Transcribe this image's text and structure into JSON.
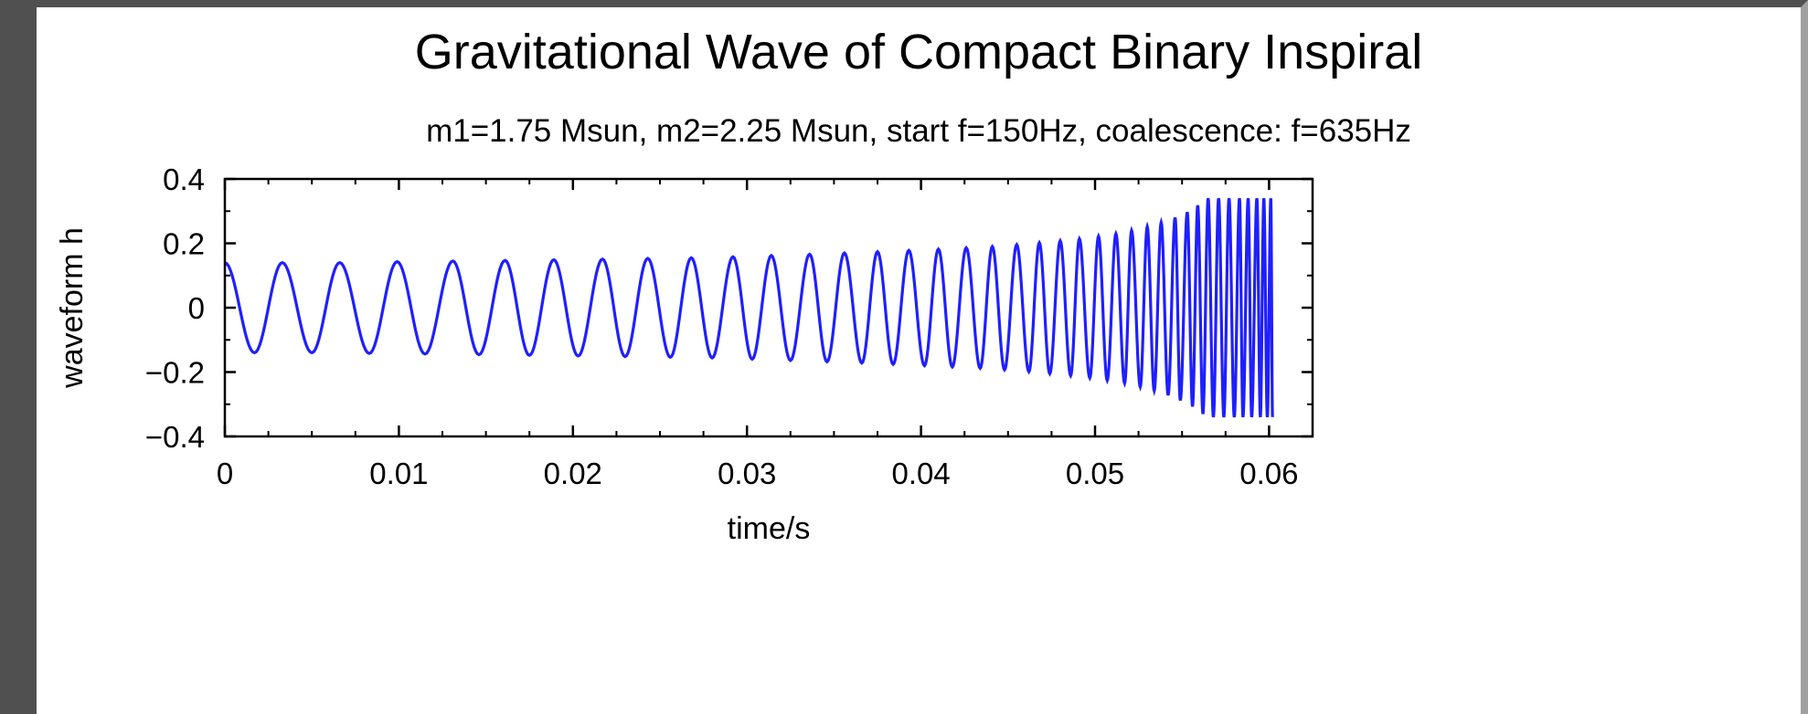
{
  "chart_data": {
    "type": "line",
    "title": "Gravitational Wave of Compact Binary Inspiral",
    "subtitle": "m1=1.75 Msun, m2=2.25 Msun, start f=150Hz, coalescence: f=635Hz",
    "xlabel": "time/s",
    "ylabel": "waveform h",
    "xlim": [
      0,
      0.0625
    ],
    "ylim": [
      -0.4,
      0.4
    ],
    "x_ticks": [
      0,
      0.01,
      0.02,
      0.03,
      0.04,
      0.05,
      0.06
    ],
    "x_tick_labels": [
      "0",
      "0.01",
      "0.02",
      "0.03",
      "0.04",
      "0.05",
      "0.06"
    ],
    "y_ticks": [
      0.4,
      0.2,
      0,
      -0.2,
      -0.4
    ],
    "y_tick_labels": [
      "0.4",
      "0.2",
      "0",
      "−0.2",
      "−0.4"
    ],
    "grid": false,
    "line_color": "#1f1fff",
    "series": [
      {
        "x": [
          0,
          0.0017,
          0.0033,
          0.005,
          0.0066,
          0.0083,
          0.0099,
          0.0115,
          0.0131,
          0.0146,
          0.0161,
          0.0175,
          0.0189,
          0.0203,
          0.0217,
          0.023,
          0.0243,
          0.0256,
          0.0268,
          0.028,
          0.0292,
          0.0303,
          0.0314,
          0.0325,
          0.0336,
          0.0346,
          0.0356,
          0.0366,
          0.0375,
          0.0384,
          0.0393,
          0.0402,
          0.041,
          0.0418,
          0.0426,
          0.0434,
          0.0441,
          0.0448,
          0.0455,
          0.0462,
          0.0468,
          0.0474,
          0.048,
          0.0486,
          0.0491,
          0.0497,
          0.0502,
          0.0507,
          0.0512,
          0.0517,
          0.0521,
          0.0526,
          0.053,
          0.0534,
          0.0538,
          0.0542,
          0.0546,
          0.0549,
          0.0553,
          0.0556,
          0.0559,
          0.0562,
          0.0565,
          0.0568,
          0.0571,
          0.0574,
          0.0577,
          0.058,
          0.0583,
          0.0585,
          0.0588,
          0.059,
          0.0593,
          0.0595,
          0.0597,
          0.0599,
          0.0601,
          0.0602
        ],
        "y": [
          0.14,
          -0.14,
          0.14,
          -0.14,
          0.14,
          -0.142,
          0.143,
          -0.144,
          0.145,
          -0.146,
          0.147,
          -0.148,
          0.149,
          -0.15,
          0.151,
          -0.152,
          0.153,
          -0.154,
          0.155,
          -0.156,
          0.158,
          -0.16,
          0.162,
          -0.164,
          0.166,
          -0.168,
          0.17,
          -0.172,
          0.174,
          -0.176,
          0.178,
          -0.18,
          0.182,
          -0.184,
          0.186,
          -0.188,
          0.19,
          -0.193,
          0.196,
          -0.199,
          0.202,
          -0.205,
          0.208,
          -0.211,
          0.214,
          -0.218,
          0.222,
          -0.226,
          0.23,
          -0.235,
          0.24,
          -0.246,
          0.252,
          -0.258,
          0.265,
          -0.272,
          0.28,
          -0.288,
          0.297,
          -0.307,
          0.318,
          -0.33,
          0.34,
          -0.34,
          0.34,
          -0.34,
          0.34,
          -0.34,
          0.34,
          -0.34,
          0.34,
          -0.34,
          0.34,
          -0.34,
          0.34,
          -0.34,
          0.34,
          -0.34
        ]
      }
    ]
  }
}
